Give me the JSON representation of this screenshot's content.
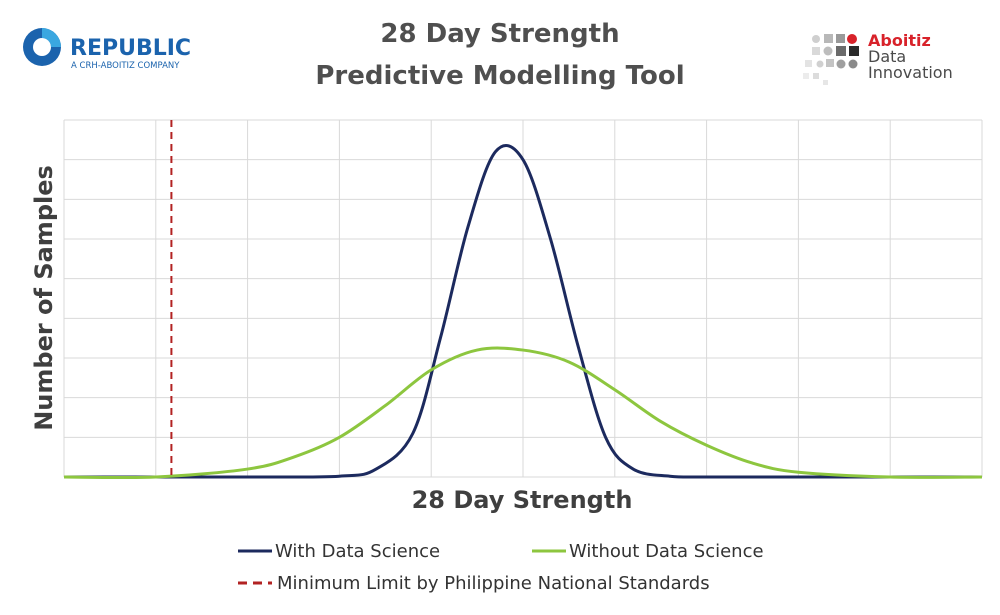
{
  "header": {
    "title_line1": "28 Day Strength",
    "title_line2": "Predictive Modelling Tool"
  },
  "logos": {
    "republic": {
      "name": "REPUBLIC",
      "tagline": "A CRH-ABOITIZ COMPANY",
      "color": "#1b63ad"
    },
    "aboitiz": {
      "line1": "Aboitiz",
      "line2": "Data",
      "line3": "Innovation",
      "accent": "#d8222a"
    }
  },
  "chart_data": {
    "type": "line",
    "title": "28 Day Strength Predictive Modelling Tool",
    "xlabel": "28 Day Strength",
    "ylabel": "Number of Samples",
    "grid": true,
    "tick_labels_shown": false,
    "xlim": [
      0,
      10
    ],
    "ylim": [
      0,
      9
    ],
    "legend_position": "bottom",
    "series": [
      {
        "name": "With Data Science",
        "color": "#1c2a5e",
        "x": [
          0,
          1,
          2,
          3,
          3.4,
          3.8,
          4.1,
          4.4,
          4.7,
          5.0,
          5.3,
          5.6,
          5.9,
          6.2,
          6.6,
          7,
          8,
          9,
          10
        ],
        "y": [
          0,
          0,
          0,
          0.02,
          0.2,
          1.1,
          3.5,
          6.3,
          8.2,
          8.0,
          6.0,
          3.3,
          1.0,
          0.2,
          0.02,
          0,
          0,
          0,
          0
        ]
      },
      {
        "name": "Without Data Science",
        "color": "#8dc63f",
        "x": [
          0,
          1,
          2,
          2.5,
          3,
          3.5,
          4,
          4.5,
          5,
          5.5,
          6,
          6.5,
          7,
          7.5,
          8,
          9,
          10
        ],
        "y": [
          0,
          0,
          0.2,
          0.5,
          1.0,
          1.8,
          2.7,
          3.2,
          3.2,
          2.9,
          2.2,
          1.4,
          0.8,
          0.35,
          0.12,
          0,
          0
        ]
      }
    ],
    "reference_lines": [
      {
        "name": "Minimum Limit by Philippine National Standards",
        "x": 1.17,
        "color": "#b22222",
        "style": "dashed"
      }
    ]
  }
}
